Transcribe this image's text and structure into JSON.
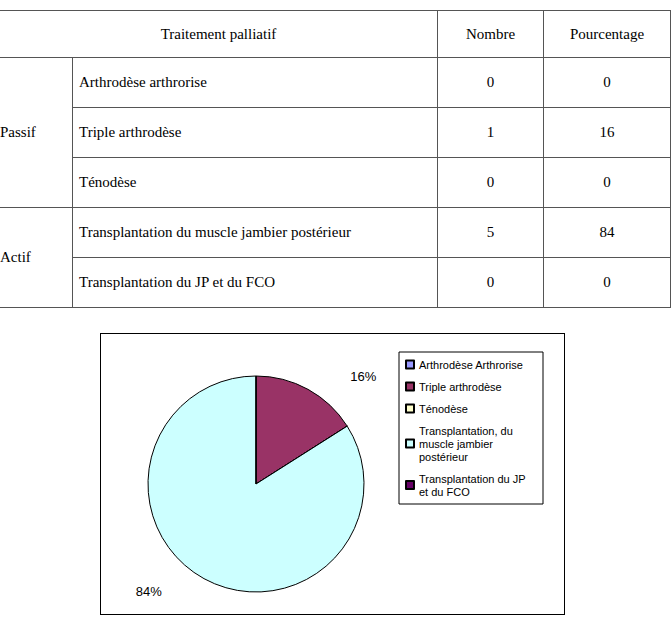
{
  "table": {
    "header": [
      "Traitement palliatif",
      "Nombre",
      "Pourcentage"
    ],
    "groups": [
      {
        "label": "Passif",
        "rows": [
          [
            "Arthrodèse arthrorise",
            0,
            0
          ],
          [
            "Triple arthrodèse",
            1,
            16
          ],
          [
            "Ténodèse",
            0,
            0
          ]
        ]
      },
      {
        "label": "Actif",
        "rows": [
          [
            "Transplantation du muscle jambier postérieur",
            5,
            84
          ],
          [
            "Transplantation du JP et du FCO",
            0,
            0
          ]
        ]
      }
    ]
  },
  "chart_data": {
    "type": "pie",
    "categories": [
      "Arthrodèse Arthrorise",
      "Triple arthrodèse",
      "Ténodèse",
      "Transplantation, du muscle jambier postérieur",
      "Transplantation du JP et du FCO"
    ],
    "values": [
      0,
      16,
      0,
      84,
      0
    ],
    "value_labels": [
      null,
      "16%",
      null,
      "84%",
      null
    ],
    "colors": [
      "#9999ff",
      "#993366",
      "#ffffcc",
      "#ccffff",
      "#660066"
    ],
    "data_labels": true,
    "legend": "right"
  }
}
